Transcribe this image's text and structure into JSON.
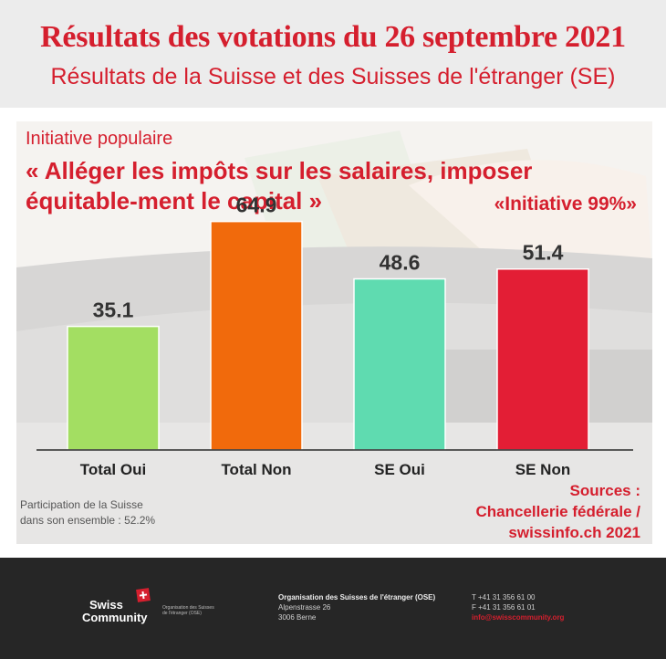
{
  "header": {
    "title": "Résultats des votations du 26 septembre 2021",
    "subtitle": "Résultats de la Suisse et des Suisses de l'étranger (SE)"
  },
  "initiative": {
    "label": "Initiative populaire",
    "title": "« Alléger les impôts sur les salaires, imposer équitable-ment le capital »",
    "alias": "«Initiative 99%»"
  },
  "chart_data": {
    "type": "bar",
    "categories": [
      "Total Oui",
      "Total Non",
      "SE Oui",
      "SE Non"
    ],
    "values": [
      35.1,
      64.9,
      48.6,
      51.4
    ],
    "value_labels": [
      "35.1",
      "64.9",
      "48.6",
      "51.4"
    ],
    "colors": [
      "#a3de62",
      "#f16a0c",
      "#5fdbb0",
      "#e31e35"
    ],
    "title": "« Alléger les impôts sur les salaires, imposer équitable-ment le capital »",
    "xlabel": "",
    "ylabel": "",
    "ylim": [
      0,
      70
    ],
    "grid": false,
    "legend": "none"
  },
  "notes": {
    "participation_line1": "Participation de la Suisse",
    "participation_line2": "dans son ensemble : 52.2%",
    "sources_line1": "Sources :",
    "sources_line2": "Chancellerie fédérale /",
    "sources_line3": "swissinfo.ch 2021"
  },
  "footer": {
    "logo_swiss": "Swiss",
    "logo_community": "Community",
    "logo_org_line1": "Organisation des Suisses",
    "logo_org_line2": "de l'étranger (OSE)",
    "org_name": "Organisation des Suisses de l'étranger (OSE)",
    "street": "Alpenstrasse 26",
    "city": "3006 Berne",
    "phone": "T +41 31 356 61 00",
    "fax": "F +41 31 356 61 01",
    "email": "info@swisscommunity.org"
  }
}
